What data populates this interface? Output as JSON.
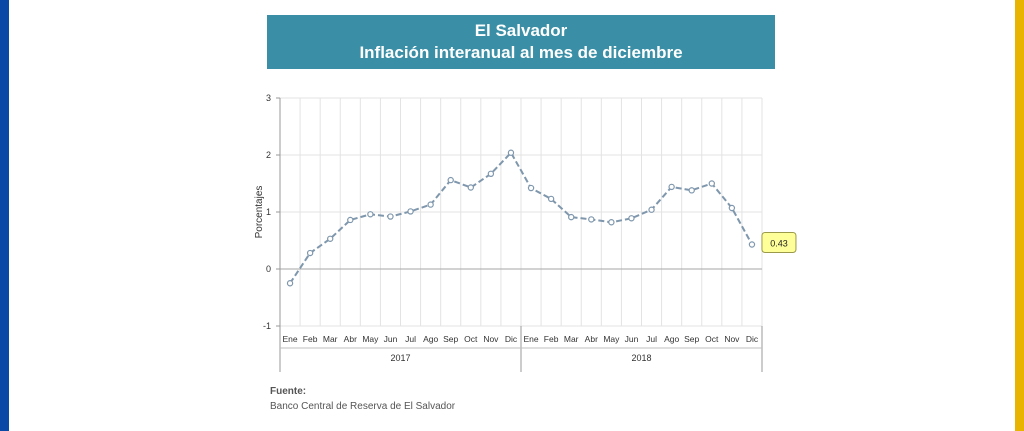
{
  "colors": {
    "left_edge": "#0a4aa6",
    "right_edge": "#e8b400",
    "title_bg": "#3a8fa6",
    "line": "#7f97ad",
    "marker_fill": "#ffffff",
    "callout_bg": "#ffff99"
  },
  "title": {
    "line1": "El Salvador",
    "line2": "Inflación interanual al mes de diciembre"
  },
  "source": {
    "label": "Fuente:",
    "text": "Banco Central de Reserva de El Salvador"
  },
  "chart_data": {
    "type": "line",
    "ylabel": "Porcentajes",
    "ylim": [
      -1,
      3
    ],
    "yticks": [
      -1,
      0,
      1,
      2,
      3
    ],
    "grid": true,
    "groups": [
      {
        "label": "2017",
        "categories": [
          "Ene",
          "Feb",
          "Mar",
          "Abr",
          "May",
          "Jun",
          "Jul",
          "Ago",
          "Sep",
          "Oct",
          "Nov",
          "Dic"
        ]
      },
      {
        "label": "2018",
        "categories": [
          "Ene",
          "Feb",
          "Mar",
          "Abr",
          "May",
          "Jun",
          "Jul",
          "Ago",
          "Sep",
          "Oct",
          "Nov",
          "Dic"
        ]
      }
    ],
    "series": [
      {
        "values": [
          -0.25,
          0.28,
          0.53,
          0.86,
          0.96,
          0.92,
          1.01,
          1.13,
          1.56,
          1.43,
          1.67,
          2.04,
          1.42,
          1.23,
          0.91,
          0.87,
          0.82,
          0.89,
          1.04,
          1.44,
          1.38,
          1.5,
          1.07,
          0.43
        ]
      }
    ],
    "annotation": {
      "index": 23,
      "text": "0.43"
    }
  }
}
